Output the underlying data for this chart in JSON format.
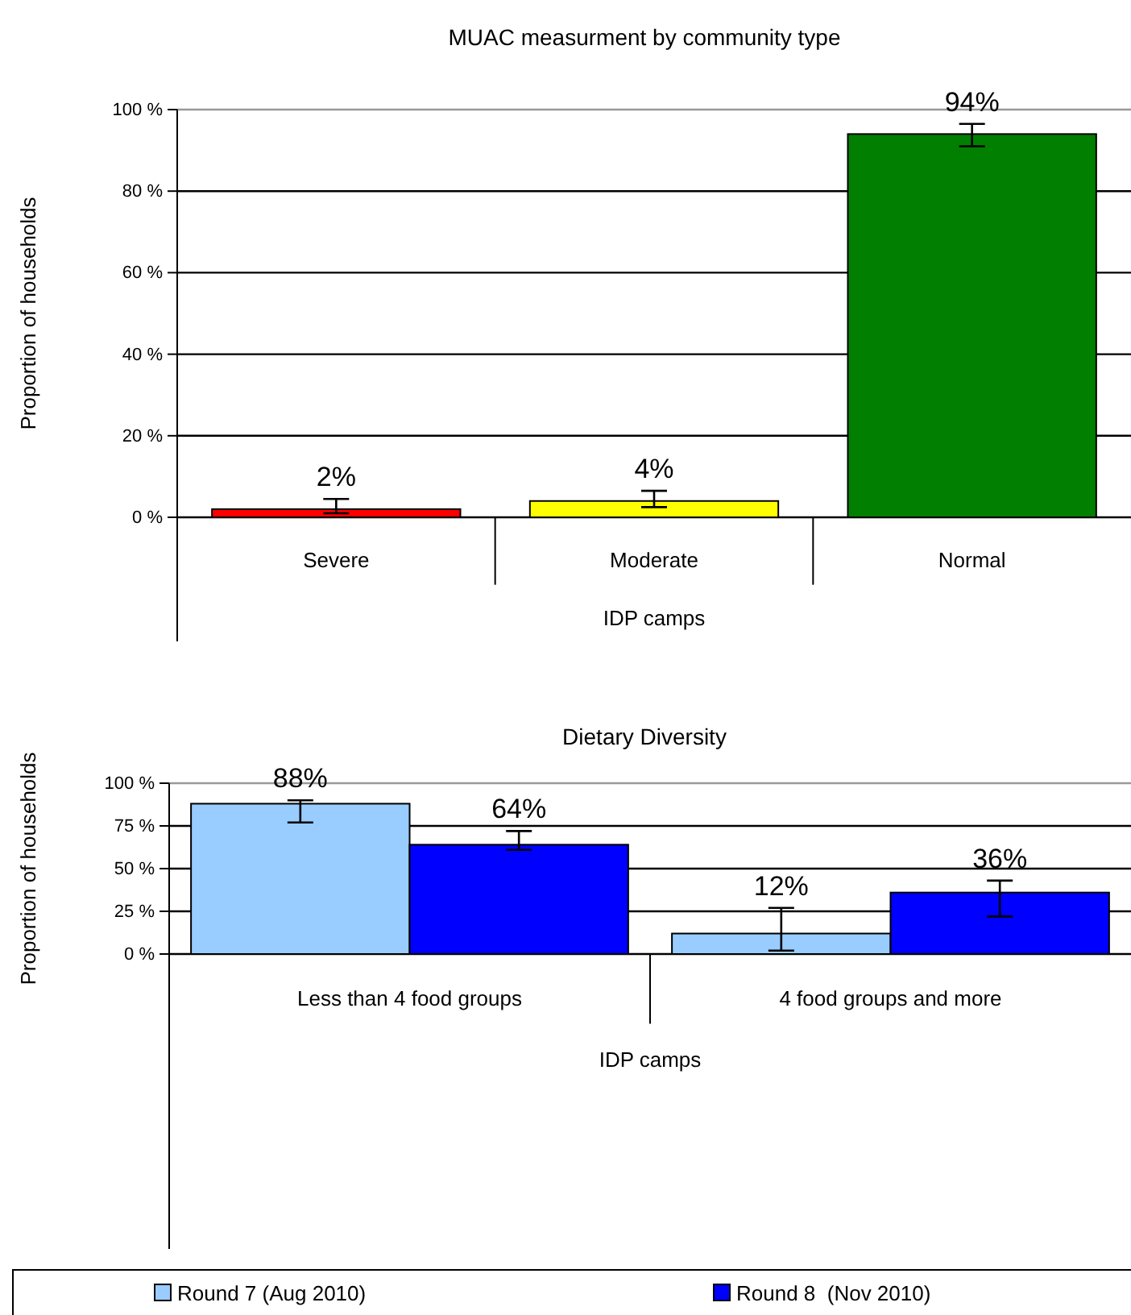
{
  "chart_data": [
    {
      "type": "bar",
      "title": "MUAC measurment by community type",
      "xlabel": "IDP camps",
      "ylabel": "Proportion of households",
      "categories": [
        "Severe",
        "Moderate",
        "Normal"
      ],
      "series": [
        {
          "values": [
            2,
            4,
            94
          ],
          "colors": [
            "#ff0000",
            "#ffff00",
            "#007f00"
          ],
          "errors": [
            [
              1,
              4.5
            ],
            [
              2.5,
              6.5
            ],
            [
              91,
              96.5
            ]
          ],
          "value_labels": [
            "2%",
            "4%",
            "94%"
          ]
        }
      ],
      "ylim": [
        0,
        100
      ],
      "yticks": [
        {
          "value": 0,
          "label": "0 %"
        },
        {
          "value": 20,
          "label": "20 %"
        },
        {
          "value": 40,
          "label": "40 %"
        },
        {
          "value": 60,
          "label": "60 %"
        },
        {
          "value": 80,
          "label": "80 %"
        },
        {
          "value": 100,
          "label": "100 %"
        }
      ],
      "grid": "y",
      "legend": false
    },
    {
      "type": "bar",
      "title": "Dietary Diversity",
      "xlabel": "IDP camps",
      "ylabel": "Proportion of households",
      "categories": [
        "Less than 4 food groups",
        "4 food groups and more"
      ],
      "series": [
        {
          "name": "Round 7 (Aug 2010)",
          "color": "#99ccff",
          "values": [
            88,
            12
          ],
          "errors": [
            [
              77,
              90
            ],
            [
              2,
              27
            ]
          ],
          "value_labels": [
            "88%",
            "12%"
          ]
        },
        {
          "name": "Round 8  (Nov 2010)",
          "color": "#0000ff",
          "values": [
            64,
            36
          ],
          "errors": [
            [
              61,
              72
            ],
            [
              22,
              43
            ]
          ],
          "value_labels": [
            "64%",
            "36%"
          ]
        }
      ],
      "ylim": [
        0,
        100
      ],
      "yticks": [
        {
          "value": 0,
          "label": "0 %"
        },
        {
          "value": 25,
          "label": "25 %"
        },
        {
          "value": 50,
          "label": "50 %"
        },
        {
          "value": 75,
          "label": "75 %"
        },
        {
          "value": 100,
          "label": "100 %"
        }
      ],
      "grid": "y",
      "legend": "bottom"
    }
  ]
}
